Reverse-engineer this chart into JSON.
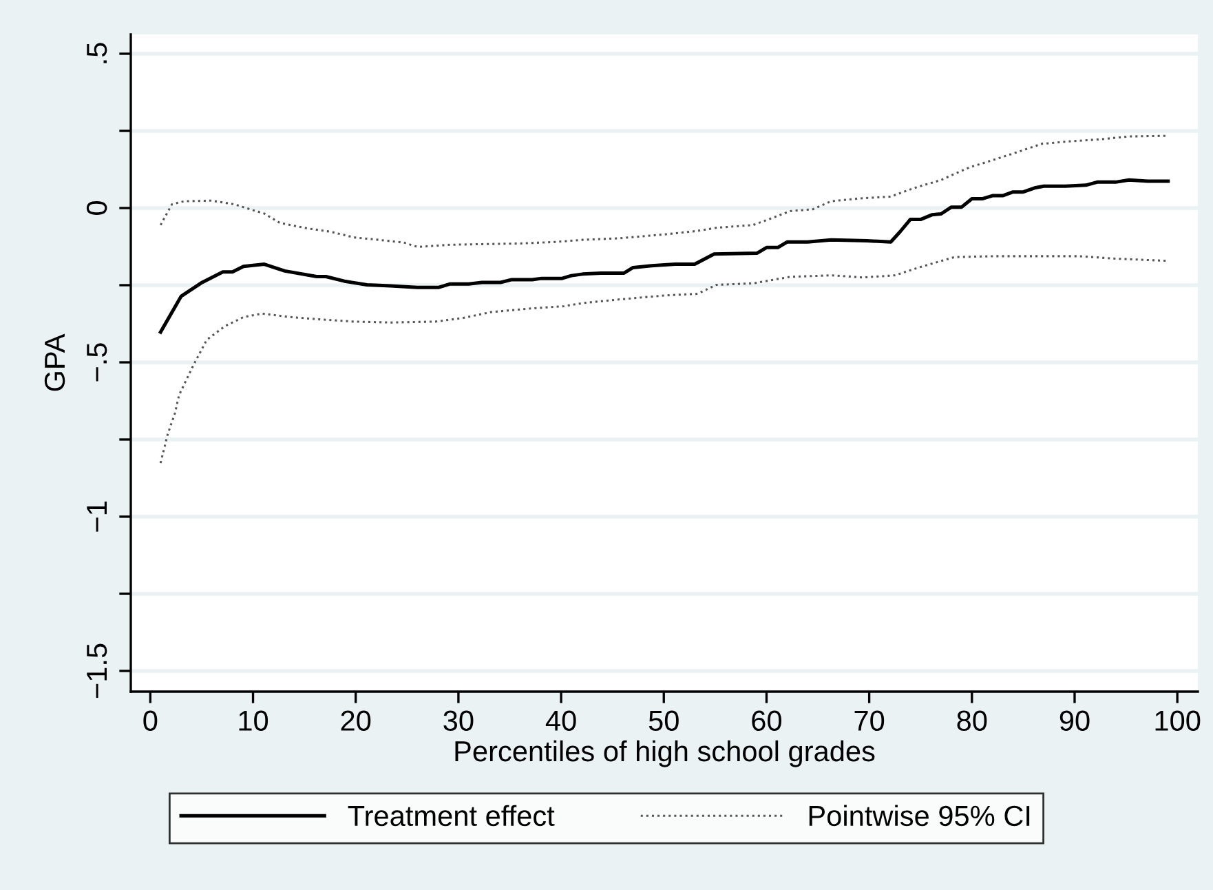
{
  "chart_data": {
    "type": "line",
    "xlabel": "Percentiles of high school grades",
    "ylabel": "GPA",
    "xlim": [
      -1.9,
      102
    ],
    "ylim": [
      -1.567,
      0.5625
    ],
    "xticks": [
      0,
      10,
      20,
      30,
      40,
      50,
      60,
      70,
      80,
      90,
      100
    ],
    "yticks": [
      {
        "value": -1.5,
        "label": "−1.5"
      },
      {
        "value": -1.25,
        "label": null
      },
      {
        "value": -1,
        "label": "−1"
      },
      {
        "value": -0.75,
        "label": null
      },
      {
        "value": -0.5,
        "label": "−.5"
      },
      {
        "value": -0.25,
        "label": null
      },
      {
        "value": 0,
        "label": "0"
      },
      {
        "value": 0.25,
        "label": null
      },
      {
        "value": 0.5,
        "label": ".5"
      }
    ],
    "grid": "y",
    "legend": "bottom",
    "series": [
      {
        "name": "Treatment effect",
        "color": "#000000",
        "line_style": "solid",
        "x": [
          1.0,
          3.0,
          5.05,
          7.06,
          8.0,
          9.07,
          11.1,
          13.1,
          16.2,
          17.1,
          18.9,
          21.1,
          23.4,
          26.0,
          28.1,
          29.2,
          31.0,
          32.3,
          34.1,
          35.2,
          37.2,
          38.1,
          40.1,
          41.0,
          42.1,
          43.9,
          46.1,
          47.0,
          48.8,
          51.1,
          53.0,
          54.9,
          59.1,
          60.0,
          61.1,
          62.0,
          64.0,
          66.3,
          69.8,
          72.1,
          73.0,
          74.0,
          75.0,
          76.1,
          77.0,
          78.0,
          79.0,
          80.0,
          81.0,
          82.0,
          83.0,
          84.0,
          85.0,
          86.2,
          87.0,
          89.1,
          91.1,
          92.2,
          94.0,
          95.3,
          97.1,
          99.1
        ],
        "values": [
          -0.402,
          -0.286,
          -0.241,
          -0.207,
          -0.207,
          -0.189,
          -0.182,
          -0.204,
          -0.222,
          -0.222,
          -0.237,
          -0.249,
          -0.252,
          -0.257,
          -0.257,
          -0.246,
          -0.246,
          -0.241,
          -0.241,
          -0.232,
          -0.232,
          -0.228,
          -0.228,
          -0.219,
          -0.214,
          -0.211,
          -0.211,
          -0.193,
          -0.187,
          -0.182,
          -0.182,
          -0.149,
          -0.146,
          -0.128,
          -0.128,
          -0.11,
          -0.11,
          -0.103,
          -0.106,
          -0.11,
          -0.077,
          -0.037,
          -0.037,
          -0.022,
          -0.019,
          0.003,
          0.003,
          0.03,
          0.03,
          0.04,
          0.04,
          0.052,
          0.052,
          0.066,
          0.071,
          0.071,
          0.074,
          0.084,
          0.084,
          0.091,
          0.087,
          0.087
        ]
      },
      {
        "name": "Pointwise 95% CI",
        "color": "#555555",
        "line_style": "dotted",
        "x": [
          1.0,
          2.1,
          3.3,
          5.9,
          8.2,
          10.0,
          11.1,
          12.6,
          15.3,
          17.6,
          19.8,
          22.5,
          24.7,
          26.0,
          27.4,
          29.2,
          32.3,
          35.9,
          39.4,
          42.1,
          45.7,
          50.2,
          53.3,
          55.1,
          58.7,
          60.5,
          62.3,
          64.5,
          66.3,
          69.0,
          72.1,
          74.3,
          77.0,
          79.7,
          82.0,
          84.6,
          86.8,
          89.5,
          92.6,
          95.3,
          98.9
        ],
        "values": [
          -0.055,
          0.012,
          0.022,
          0.024,
          0.012,
          -0.007,
          -0.018,
          -0.048,
          -0.066,
          -0.077,
          -0.095,
          -0.104,
          -0.112,
          -0.126,
          -0.123,
          -0.119,
          -0.117,
          -0.115,
          -0.11,
          -0.103,
          -0.098,
          -0.085,
          -0.074,
          -0.064,
          -0.055,
          -0.033,
          -0.01,
          -0.004,
          0.022,
          0.031,
          0.037,
          0.064,
          0.091,
          0.131,
          0.155,
          0.183,
          0.208,
          0.216,
          0.223,
          0.232,
          0.234
        ]
      },
      {
        "color": "#555555",
        "line_style": "dotted",
        "x": [
          1.0,
          1.7,
          2.4,
          2.8,
          4.2,
          5.5,
          7.3,
          9.1,
          10.9,
          13.5,
          16.2,
          19.8,
          23.4,
          27.8,
          30.5,
          33.2,
          36.8,
          40.3,
          42.1,
          45.7,
          50.2,
          53.3,
          55.1,
          58.7,
          62.3,
          66.3,
          69.4,
          72.5,
          74.8,
          78.3,
          82.3,
          86.8,
          90.4,
          94.0,
          98.9
        ],
        "values": [
          -0.826,
          -0.732,
          -0.665,
          -0.606,
          -0.509,
          -0.427,
          -0.382,
          -0.353,
          -0.342,
          -0.353,
          -0.36,
          -0.368,
          -0.371,
          -0.368,
          -0.356,
          -0.337,
          -0.326,
          -0.318,
          -0.308,
          -0.296,
          -0.283,
          -0.278,
          -0.249,
          -0.244,
          -0.223,
          -0.218,
          -0.225,
          -0.218,
          -0.193,
          -0.159,
          -0.156,
          -0.156,
          -0.156,
          -0.164,
          -0.171
        ]
      }
    ]
  }
}
